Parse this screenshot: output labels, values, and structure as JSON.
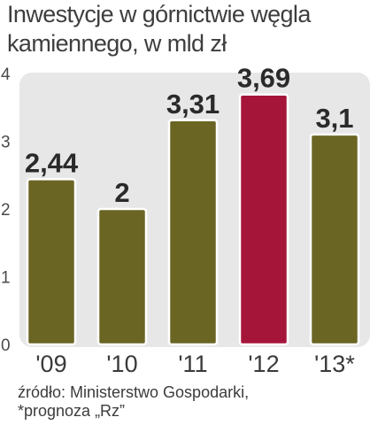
{
  "chart_data": {
    "type": "bar",
    "title_lines": [
      "Inwestycje w górnictwie węgla",
      "kamiennego, w mld zł"
    ],
    "categories": [
      "'09",
      "'10",
      "'11",
      "'12",
      "'13*"
    ],
    "values": [
      2.44,
      2,
      3.31,
      3.69,
      3.1
    ],
    "value_labels": [
      "2,44",
      "2",
      "3,31",
      "3,69",
      "3,1"
    ],
    "highlight_index": 3,
    "yticks": [
      "0",
      "1",
      "2",
      "3",
      "4"
    ],
    "ylim": [
      0,
      4
    ],
    "grid": false,
    "colors": {
      "bar": "#6b6524",
      "highlight": "#a5153a",
      "panel": "#e7e7e7",
      "bar_outline": "#ffffff"
    }
  },
  "source_lines": [
    "źródło: Ministerstwo Gospodarki,",
    "*prognoza „Rz”"
  ]
}
